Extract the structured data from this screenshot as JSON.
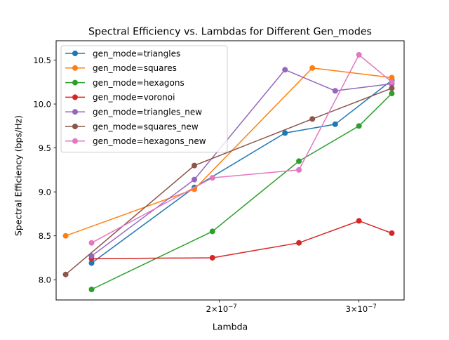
{
  "chart_data": {
    "type": "line",
    "title": "Spectral Efficiency vs. Lambdas for Different Gen_modes",
    "xlabel": "Lambda",
    "ylabel": "Spectral Efficiency (bps/Hz)",
    "xscale": "log",
    "xlim": [
      1.245e-07,
      3.42e-07
    ],
    "ylim": [
      7.77,
      10.72
    ],
    "x_ticks": [
      {
        "value": 2e-07,
        "base": "2×10",
        "exp": "−7"
      },
      {
        "value": 3e-07,
        "base": "3×10",
        "exp": "−7"
      }
    ],
    "y_ticks": [
      {
        "value": 8.0,
        "label": "8.0"
      },
      {
        "value": 8.5,
        "label": "8.5"
      },
      {
        "value": 9.0,
        "label": "9.0"
      },
      {
        "value": 9.5,
        "label": "9.5"
      },
      {
        "value": 10.0,
        "label": "10.0"
      },
      {
        "value": 10.5,
        "label": "10.5"
      }
    ],
    "grid": false,
    "legend": "upper-left",
    "series": [
      {
        "name": "gen_mode=triangles",
        "color": "#1f77b4",
        "points": [
          [
            1.38e-07,
            8.19
          ],
          [
            1.86e-07,
            9.05
          ],
          [
            2.42e-07,
            9.67
          ],
          [
            2.8e-07,
            9.77
          ],
          [
            3.3e-07,
            10.27
          ]
        ]
      },
      {
        "name": "gen_mode=squares",
        "color": "#ff7f0e",
        "points": [
          [
            1.28e-07,
            8.5
          ],
          [
            1.86e-07,
            9.03
          ],
          [
            2.62e-07,
            10.41
          ],
          [
            3.3e-07,
            10.3
          ]
        ]
      },
      {
        "name": "gen_mode=hexagons",
        "color": "#2ca02c",
        "points": [
          [
            1.38e-07,
            7.89
          ],
          [
            1.96e-07,
            8.55
          ],
          [
            2.52e-07,
            9.35
          ],
          [
            3e-07,
            9.75
          ],
          [
            3.3e-07,
            10.12
          ]
        ]
      },
      {
        "name": "gen_mode=voronoi",
        "color": "#d62728",
        "points": [
          [
            1.38e-07,
            8.24
          ],
          [
            1.96e-07,
            8.25
          ],
          [
            2.52e-07,
            8.42
          ],
          [
            3e-07,
            8.67
          ],
          [
            3.3e-07,
            8.53
          ]
        ]
      },
      {
        "name": "gen_mode=triangles_new",
        "color": "#9467bd",
        "points": [
          [
            1.38e-07,
            8.27
          ],
          [
            1.86e-07,
            9.14
          ],
          [
            2.42e-07,
            10.39
          ],
          [
            2.8e-07,
            10.15
          ],
          [
            3.3e-07,
            10.23
          ]
        ]
      },
      {
        "name": "gen_mode=squares_new",
        "color": "#8c564b",
        "points": [
          [
            1.28e-07,
            8.06
          ],
          [
            1.86e-07,
            9.3
          ],
          [
            2.62e-07,
            9.83
          ],
          [
            3.3e-07,
            10.18
          ]
        ]
      },
      {
        "name": "gen_mode=hexagons_new",
        "color": "#e377c2",
        "points": [
          [
            1.38e-07,
            8.42
          ],
          [
            1.96e-07,
            9.16
          ],
          [
            2.52e-07,
            9.25
          ],
          [
            3e-07,
            10.56
          ],
          [
            3.3e-07,
            10.25
          ]
        ]
      }
    ]
  }
}
